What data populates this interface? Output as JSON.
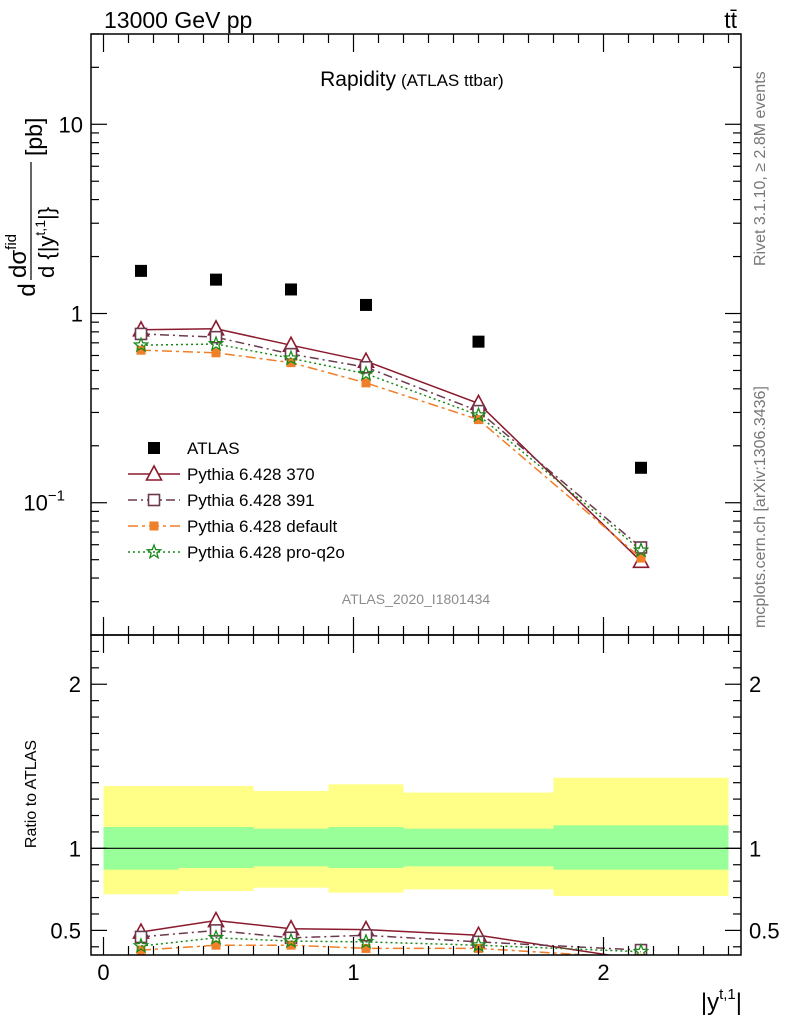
{
  "header": {
    "left": "13000 GeV pp",
    "right": "tt̄"
  },
  "side_labels": {
    "rivet": "Rivet 3.1.10, ≥ 2.8M events",
    "mcplots": "mcplots.cern.ch [arXiv:1306.3436]"
  },
  "chart_data": [
    {
      "type": "scatter",
      "panel": "main",
      "title": "Rapidity",
      "subtitle": "(ATLAS ttbar)",
      "analysis_tag": "ATLAS_2020_I1801434",
      "ylabel": "d dσfid / d{|yt,1|} [pb]",
      "ylabel_parts": {
        "num": "dσ",
        "num_sup": "fid",
        "den_pre": "d {|y",
        "den_sup": "t,1",
        "den_post": "|}",
        "lead": "d",
        "unit": "[pb]"
      },
      "yscale": "log",
      "xlim": [
        -0.05,
        2.55
      ],
      "ylim": [
        0.02,
        30
      ],
      "y_ticks": [
        {
          "value": 0.1,
          "label": "10",
          "sup": "−1"
        },
        {
          "value": 1,
          "label": "1"
        },
        {
          "value": 10,
          "label": "10"
        }
      ],
      "legend_position": "lower-left",
      "series": [
        {
          "name": "ATLAS",
          "style": "data",
          "color": "#000000",
          "x": [
            0.15,
            0.45,
            0.75,
            1.05,
            1.5,
            2.15
          ],
          "y": [
            1.68,
            1.51,
            1.34,
            1.11,
            0.71,
            0.153
          ]
        },
        {
          "name": "Pythia 6.428 370",
          "style": "triangle",
          "color": "#8b1a2e",
          "x": [
            0.15,
            0.45,
            0.75,
            1.05,
            1.5,
            2.15
          ],
          "y": [
            0.82,
            0.83,
            0.68,
            0.56,
            0.335,
            0.049
          ]
        },
        {
          "name": "Pythia 6.428 391",
          "style": "square-open",
          "color": "#6b3a4e",
          "x": [
            0.15,
            0.45,
            0.75,
            1.05,
            1.5,
            2.15
          ],
          "y": [
            0.78,
            0.75,
            0.61,
            0.52,
            0.305,
            0.058
          ]
        },
        {
          "name": "Pythia 6.428 default",
          "style": "square-filled",
          "color": "#f07f2a",
          "x": [
            0.15,
            0.45,
            0.75,
            1.05,
            1.5,
            2.15
          ],
          "y": [
            0.64,
            0.62,
            0.55,
            0.43,
            0.275,
            0.051
          ]
        },
        {
          "name": "Pythia 6.428 pro-q2o",
          "style": "star",
          "color": "#1a8a1a",
          "x": [
            0.15,
            0.45,
            0.75,
            1.05,
            1.5,
            2.15
          ],
          "y": [
            0.68,
            0.69,
            0.58,
            0.48,
            0.29,
            0.056
          ]
        }
      ]
    },
    {
      "type": "line",
      "panel": "ratio",
      "ylabel": "Ratio to ATLAS",
      "xlabel": "|yt,1|",
      "xlabel_parts": {
        "base": "|y",
        "sup": "t,1",
        "post": "|"
      },
      "xlim": [
        -0.05,
        2.55
      ],
      "ylim": [
        0.35,
        2.3
      ],
      "x_ticks": [
        0,
        1,
        2
      ],
      "y_ticks": [
        0.5,
        1,
        2
      ],
      "reference_line": 1,
      "bins": [
        0,
        0.3,
        0.6,
        0.9,
        1.2,
        1.8,
        2.5
      ],
      "band_inner": {
        "color": "#99ff99",
        "low": [
          0.87,
          0.88,
          0.89,
          0.88,
          0.89,
          0.87
        ],
        "high": [
          1.13,
          1.13,
          1.12,
          1.13,
          1.12,
          1.14
        ]
      },
      "band_outer": {
        "color": "#ffff88",
        "low": [
          0.72,
          0.74,
          0.76,
          0.73,
          0.75,
          0.71
        ],
        "high": [
          1.38,
          1.38,
          1.35,
          1.39,
          1.34,
          1.43
        ]
      },
      "series": [
        {
          "name": "Pythia 6.428 370",
          "style": "triangle",
          "color": "#8b1a2e",
          "x": [
            0.15,
            0.45,
            0.75,
            1.05,
            1.5,
            2.15
          ],
          "y": [
            0.49,
            0.56,
            0.51,
            0.505,
            0.47,
            0.32
          ]
        },
        {
          "name": "Pythia 6.428 391",
          "style": "square-open",
          "color": "#6b3a4e",
          "x": [
            0.15,
            0.45,
            0.75,
            1.05,
            1.5,
            2.15
          ],
          "y": [
            0.46,
            0.5,
            0.455,
            0.47,
            0.43,
            0.38
          ]
        },
        {
          "name": "Pythia 6.428 default",
          "style": "square-filled",
          "color": "#f07f2a",
          "x": [
            0.15,
            0.45,
            0.75,
            1.05,
            1.5,
            2.15
          ],
          "y": [
            0.38,
            0.41,
            0.41,
            0.39,
            0.39,
            0.33
          ]
        },
        {
          "name": "Pythia 6.428 pro-q2o",
          "style": "star",
          "color": "#1a8a1a",
          "x": [
            0.15,
            0.45,
            0.75,
            1.05,
            1.5,
            2.15
          ],
          "y": [
            0.405,
            0.455,
            0.435,
            0.43,
            0.41,
            0.37
          ]
        }
      ]
    }
  ]
}
